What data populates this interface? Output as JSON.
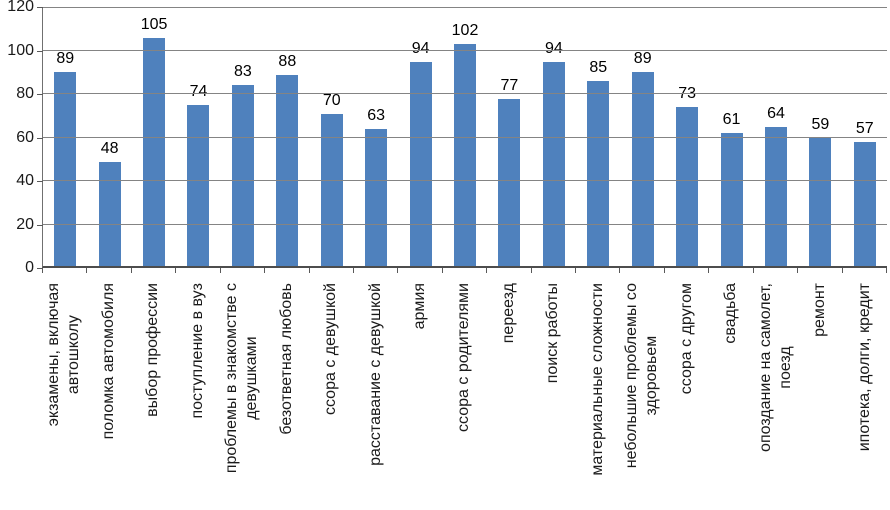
{
  "chart_data": {
    "type": "bar",
    "title": "",
    "xlabel": "",
    "ylabel": "",
    "ylim": [
      0,
      120
    ],
    "yticks": [
      0,
      20,
      40,
      60,
      80,
      100,
      120
    ],
    "grid": "horizontal",
    "legend": "none",
    "bar_color": "#4f81bd",
    "categories": [
      "экзамены, включая автошколу",
      "поломка автомобиля",
      "выбор профессии",
      "поступление в вуз",
      "проблемы в знакомстве с девушками",
      "безответная любовь",
      "ссора с девушкой",
      "расставание с девушкой",
      "армия",
      "ссора с родителями",
      "переезд",
      "поиск работы",
      "материальные сложности",
      "небольшие проблемы со здоровьем",
      "ссора с другом",
      "свадьба",
      "опоздание на самолет, поезд",
      "ремонт",
      "ипотека, долги, кредит"
    ],
    "tick_labels": [
      "экзамены, включая\nавтошколу",
      "поломка автомобиля",
      "выбор профессии",
      "поступление в вуз",
      "проблемы в знакомстве с\nдевушками",
      "безответная любовь",
      "ссора с девушкой",
      "расставание с девушкой",
      "армия",
      "ссора с родителями",
      "переезд",
      "поиск работы",
      "материальные сложности",
      "небольшие проблемы со\nздоровьем",
      "ссора с другом",
      "свадьба",
      "опоздание на самолет,\nпоезд",
      "ремонт",
      "ипотека, долги, кредит"
    ],
    "values": [
      89,
      48,
      105,
      74,
      83,
      88,
      70,
      63,
      94,
      102,
      77,
      94,
      85,
      89,
      73,
      61,
      64,
      59,
      57
    ]
  },
  "colors": {
    "bar": "#4f81bd",
    "gridline": "#848484",
    "axis": "#4d4d4d",
    "tick": "#595959",
    "text": "#1a1a1a",
    "background": "#ffffff"
  }
}
